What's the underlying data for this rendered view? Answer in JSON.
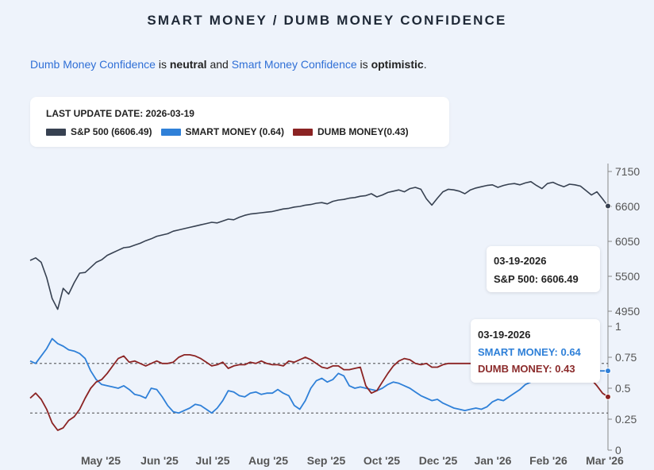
{
  "title": "SMART MONEY / DUMB MONEY CONFIDENCE",
  "summary": {
    "dumb_link": "Dumb Money Confidence",
    "is1": " is ",
    "dumb_state": "neutral",
    "and": " and ",
    "smart_link": "Smart Money Confidence",
    "is2": " is ",
    "smart_state": "optimistic",
    "end": "."
  },
  "legend": {
    "last_update": "LAST UPDATE DATE: 2026-03-19",
    "items": [
      {
        "label": "S&P 500 (6606.49)",
        "color": "#374151"
      },
      {
        "label": "SMART MONEY (0.64)",
        "color": "#2f80d8"
      },
      {
        "label": "DUMB MONEY(0.43)",
        "color": "#8b2323"
      }
    ]
  },
  "tooltip_spx": {
    "date": "03-19-2026",
    "value": "S&P 500: 6606.49"
  },
  "tooltip_conf": {
    "date": "03-19-2026",
    "smart": "SMART MONEY: 0.64",
    "dumb": "DUMB MONEY: 0.43"
  },
  "chart_data": {
    "type": "line",
    "x_ticks": [
      "May '25",
      "Jun '25",
      "Jul '25",
      "Aug '25",
      "Sep '25",
      "Oct '25",
      "Dec '25",
      "Jan '26",
      "Feb '26",
      "Mar '26"
    ],
    "spx_axis": {
      "ticks": [
        "7150",
        "6600",
        "6050",
        "5500",
        "4950"
      ],
      "ylim": [
        4950,
        7150
      ]
    },
    "conf_axis": {
      "ticks": [
        "1",
        "0.75",
        "0.5",
        "0.25",
        "0"
      ],
      "ylim": [
        0,
        1
      ]
    },
    "thresholds": [
      0.7,
      0.3
    ],
    "series": [
      {
        "name": "S&P 500",
        "color": "#374151",
        "values": [
          5750,
          5790,
          5720,
          5480,
          5150,
          4980,
          5310,
          5220,
          5400,
          5550,
          5560,
          5640,
          5720,
          5760,
          5830,
          5870,
          5910,
          5950,
          5960,
          5990,
          6020,
          6060,
          6090,
          6130,
          6150,
          6170,
          6210,
          6230,
          6250,
          6270,
          6290,
          6310,
          6330,
          6350,
          6340,
          6370,
          6400,
          6390,
          6430,
          6460,
          6480,
          6490,
          6500,
          6510,
          6520,
          6540,
          6560,
          6570,
          6590,
          6600,
          6620,
          6630,
          6650,
          6660,
          6640,
          6680,
          6700,
          6710,
          6730,
          6740,
          6760,
          6770,
          6800,
          6750,
          6780,
          6820,
          6840,
          6860,
          6830,
          6880,
          6900,
          6870,
          6720,
          6620,
          6730,
          6830,
          6870,
          6860,
          6840,
          6800,
          6860,
          6890,
          6910,
          6930,
          6940,
          6900,
          6930,
          6950,
          6960,
          6940,
          6970,
          6990,
          6930,
          6880,
          6960,
          6980,
          6940,
          6910,
          6950,
          6940,
          6920,
          6850,
          6780,
          6830,
          6720,
          6606
        ]
      },
      {
        "name": "SMART MONEY",
        "color": "#2f80d8",
        "values": [
          0.72,
          0.7,
          0.76,
          0.82,
          0.9,
          0.86,
          0.84,
          0.81,
          0.8,
          0.78,
          0.74,
          0.64,
          0.57,
          0.53,
          0.52,
          0.51,
          0.5,
          0.52,
          0.49,
          0.45,
          0.44,
          0.42,
          0.5,
          0.49,
          0.43,
          0.36,
          0.31,
          0.3,
          0.32,
          0.34,
          0.37,
          0.36,
          0.33,
          0.3,
          0.34,
          0.4,
          0.48,
          0.47,
          0.44,
          0.43,
          0.46,
          0.47,
          0.45,
          0.46,
          0.46,
          0.49,
          0.46,
          0.44,
          0.36,
          0.33,
          0.4,
          0.5,
          0.56,
          0.58,
          0.55,
          0.57,
          0.62,
          0.6,
          0.52,
          0.5,
          0.51,
          0.5,
          0.49,
          0.48,
          0.5,
          0.53,
          0.55,
          0.54,
          0.52,
          0.5,
          0.47,
          0.44,
          0.42,
          0.4,
          0.41,
          0.38,
          0.36,
          0.34,
          0.33,
          0.32,
          0.33,
          0.34,
          0.33,
          0.35,
          0.39,
          0.41,
          0.4,
          0.43,
          0.46,
          0.49,
          0.53,
          0.55,
          0.58,
          0.62,
          0.63,
          0.64,
          0.62,
          0.63,
          0.63,
          0.65,
          0.64,
          0.63,
          0.62,
          0.64,
          0.64,
          0.64
        ]
      },
      {
        "name": "DUMB MONEY",
        "color": "#8b2323",
        "values": [
          0.42,
          0.46,
          0.41,
          0.33,
          0.22,
          0.16,
          0.18,
          0.24,
          0.27,
          0.33,
          0.42,
          0.5,
          0.55,
          0.57,
          0.62,
          0.68,
          0.74,
          0.76,
          0.71,
          0.72,
          0.7,
          0.68,
          0.7,
          0.72,
          0.7,
          0.7,
          0.71,
          0.75,
          0.77,
          0.77,
          0.76,
          0.74,
          0.71,
          0.68,
          0.69,
          0.71,
          0.66,
          0.68,
          0.69,
          0.69,
          0.71,
          0.7,
          0.72,
          0.7,
          0.69,
          0.69,
          0.68,
          0.72,
          0.71,
          0.73,
          0.75,
          0.73,
          0.7,
          0.67,
          0.66,
          0.68,
          0.68,
          0.65,
          0.65,
          0.66,
          0.67,
          0.52,
          0.46,
          0.48,
          0.55,
          0.62,
          0.68,
          0.72,
          0.74,
          0.73,
          0.7,
          0.69,
          0.7,
          0.67,
          0.67,
          0.69,
          0.7,
          0.7,
          0.7,
          0.7,
          0.7,
          0.7,
          0.7,
          0.7,
          0.7,
          0.7,
          0.7,
          0.7,
          0.7,
          0.7,
          0.7,
          0.7,
          0.7,
          0.7,
          0.7,
          0.7,
          0.7,
          0.7,
          0.7,
          0.7,
          0.7,
          0.7,
          0.57,
          0.52,
          0.46,
          0.43
        ]
      }
    ]
  }
}
